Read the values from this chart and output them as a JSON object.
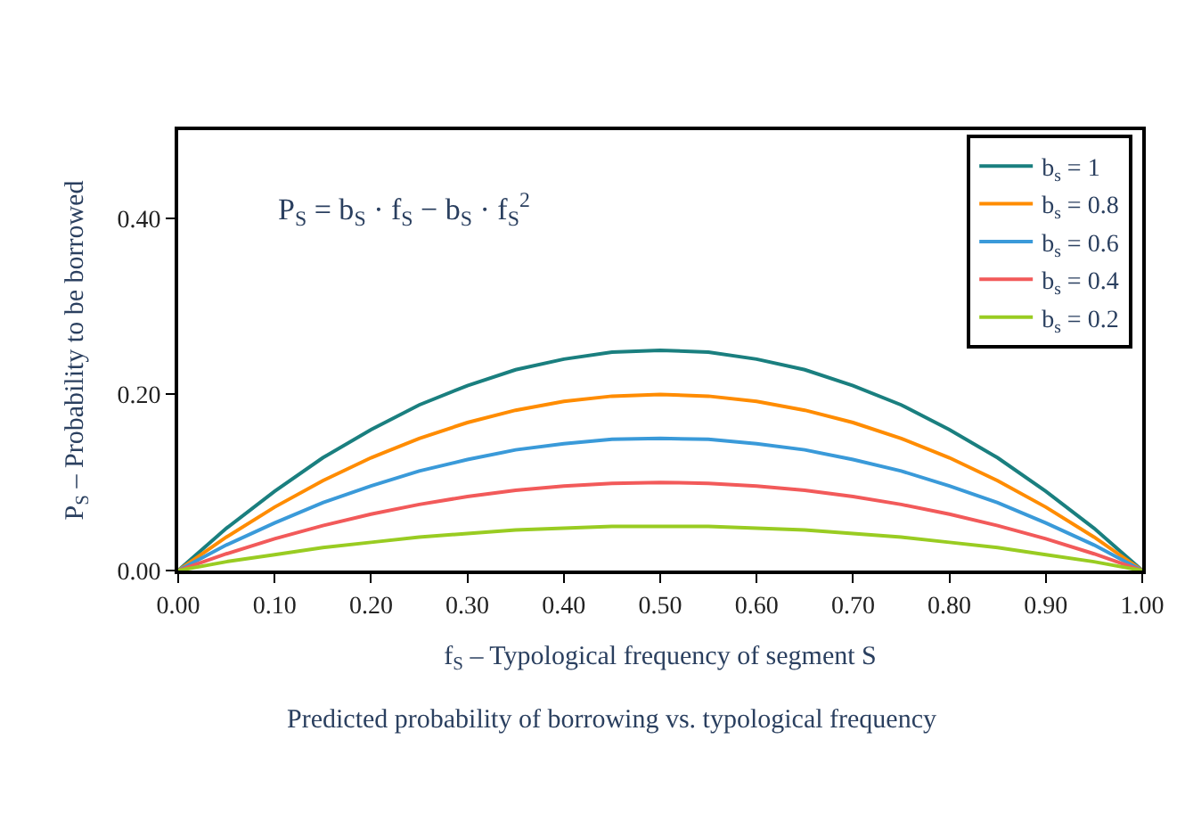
{
  "chart_data": {
    "type": "line",
    "xlabel": "f$_{S}$ – Typological frequency of segment S",
    "ylabel": "P$_{S}$ – Probability to be borrowed",
    "annotations": [
      "P$_{S}$ = b$_{S}$ · f$_{S}$ − b$_{S}$ · f$_{S}$$^{2}$",
      "Predicted probability of borrowing vs. typological frequency"
    ],
    "x": [
      0,
      0.05,
      0.1,
      0.15,
      0.2,
      0.25,
      0.3,
      0.35,
      0.4,
      0.45,
      0.5,
      0.55,
      0.6,
      0.65,
      0.7,
      0.75,
      0.8,
      0.85,
      0.9,
      0.95,
      1
    ],
    "series": [
      {
        "name": "b$_{s}$ = 1",
        "color": "#1a7f7f",
        "values": [
          0,
          0.048,
          0.09,
          0.128,
          0.16,
          0.188,
          0.21,
          0.228,
          0.24,
          0.248,
          0.25,
          0.248,
          0.24,
          0.228,
          0.21,
          0.188,
          0.16,
          0.128,
          0.09,
          0.048,
          0
        ]
      },
      {
        "name": "b$_{s}$ = 0.8",
        "color": "#ff8c00",
        "values": [
          0,
          0.038,
          0.072,
          0.102,
          0.128,
          0.15,
          0.168,
          0.182,
          0.192,
          0.198,
          0.2,
          0.198,
          0.192,
          0.182,
          0.168,
          0.15,
          0.128,
          0.102,
          0.072,
          0.038,
          0
        ]
      },
      {
        "name": "b$_{s}$ = 0.6",
        "color": "#3a9ad9",
        "values": [
          0,
          0.029,
          0.054,
          0.077,
          0.096,
          0.113,
          0.126,
          0.137,
          0.144,
          0.149,
          0.15,
          0.149,
          0.144,
          0.137,
          0.126,
          0.113,
          0.096,
          0.077,
          0.054,
          0.029,
          0
        ]
      },
      {
        "name": "b$_{s}$ = 0.4",
        "color": "#f25a5a",
        "values": [
          0,
          0.019,
          0.036,
          0.051,
          0.064,
          0.075,
          0.084,
          0.091,
          0.096,
          0.099,
          0.1,
          0.099,
          0.096,
          0.091,
          0.084,
          0.075,
          0.064,
          0.051,
          0.036,
          0.019,
          0
        ]
      },
      {
        "name": "b$_{s}$ = 0.2",
        "color": "#99cc22",
        "values": [
          0,
          0.01,
          0.018,
          0.026,
          0.032,
          0.038,
          0.042,
          0.046,
          0.048,
          0.05,
          0.05,
          0.05,
          0.048,
          0.046,
          0.042,
          0.038,
          0.032,
          0.026,
          0.018,
          0.01,
          0
        ]
      }
    ],
    "xlim": [
      0,
      1
    ],
    "ylim": [
      0,
      0.5
    ],
    "xticks": [
      {
        "value": 0,
        "label": "0.00"
      },
      {
        "value": 0.1,
        "label": "0.10"
      },
      {
        "value": 0.2,
        "label": "0.20"
      },
      {
        "value": 0.3,
        "label": "0.30"
      },
      {
        "value": 0.4,
        "label": "0.40"
      },
      {
        "value": 0.5,
        "label": "0.50"
      },
      {
        "value": 0.6,
        "label": "0.60"
      },
      {
        "value": 0.7,
        "label": "0.70"
      },
      {
        "value": 0.8,
        "label": "0.80"
      },
      {
        "value": 0.9,
        "label": "0.90"
      },
      {
        "value": 1,
        "label": "1.00"
      }
    ],
    "yticks": [
      {
        "value": 0,
        "label": "0.00"
      },
      {
        "value": 0.2,
        "label": "0.20"
      },
      {
        "value": 0.4,
        "label": "0.40"
      }
    ],
    "legend": "top right",
    "marker": "none",
    "line_style": "solid"
  }
}
